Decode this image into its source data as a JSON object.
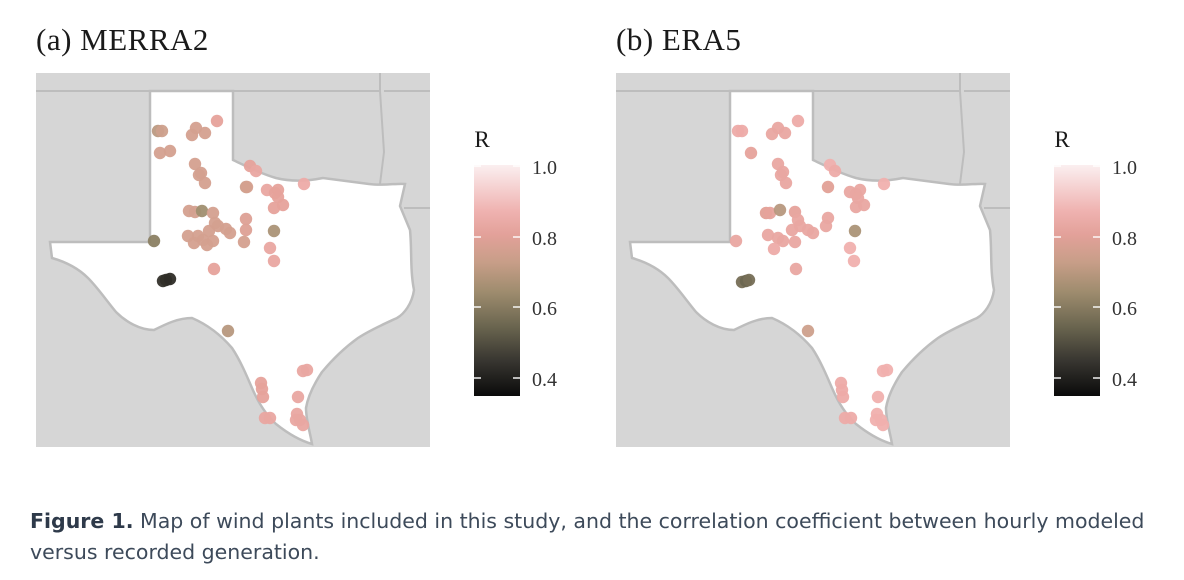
{
  "panels": [
    {
      "id": "a",
      "title": "(a)  MERRA2",
      "legend": {
        "title": "R",
        "ticks": [
          "1.0",
          "0.8",
          "0.6",
          "0.4"
        ]
      },
      "plants": [
        [
          158,
          131,
          0.75
        ],
        [
          162,
          131,
          0.78
        ],
        [
          160,
          153,
          0.8
        ],
        [
          170,
          151,
          0.8
        ],
        [
          196,
          128,
          0.8
        ],
        [
          217,
          121,
          0.86
        ],
        [
          192,
          135,
          0.8
        ],
        [
          205,
          133,
          0.8
        ],
        [
          195,
          164,
          0.8
        ],
        [
          199,
          175,
          0.8
        ],
        [
          205,
          183,
          0.8
        ],
        [
          201,
          173,
          0.8
        ],
        [
          250,
          166,
          0.86
        ],
        [
          256,
          171,
          0.88
        ],
        [
          246,
          187,
          0.78
        ],
        [
          267,
          190,
          0.88
        ],
        [
          275,
          193,
          0.86
        ],
        [
          278,
          190,
          0.86
        ],
        [
          283,
          205,
          0.86
        ],
        [
          278,
          197,
          0.86
        ],
        [
          274,
          208,
          0.86
        ],
        [
          304,
          184,
          0.9
        ],
        [
          247,
          187,
          0.8
        ],
        [
          195,
          212,
          0.8
        ],
        [
          189,
          211,
          0.8
        ],
        [
          202,
          211,
          0.7
        ],
        [
          213,
          213,
          0.8
        ],
        [
          215,
          223,
          0.8
        ],
        [
          218,
          226,
          0.8
        ],
        [
          209,
          231,
          0.8
        ],
        [
          226,
          229,
          0.8
        ],
        [
          230,
          233,
          0.8
        ],
        [
          188,
          236,
          0.8
        ],
        [
          198,
          236,
          0.8
        ],
        [
          203,
          240,
          0.8
        ],
        [
          213,
          241,
          0.8
        ],
        [
          246,
          219,
          0.83
        ],
        [
          246,
          230,
          0.83
        ],
        [
          244,
          242,
          0.8
        ],
        [
          207,
          245,
          0.8
        ],
        [
          194,
          243,
          0.8
        ],
        [
          274,
          231,
          0.72
        ],
        [
          270,
          248,
          0.88
        ],
        [
          274,
          261,
          0.88
        ],
        [
          154,
          241,
          0.66
        ],
        [
          214,
          269,
          0.86
        ],
        [
          163,
          281,
          0.47
        ],
        [
          166,
          280,
          0.46
        ],
        [
          170,
          279,
          0.45
        ],
        [
          228,
          331,
          0.74
        ],
        [
          261,
          383,
          0.86
        ],
        [
          262,
          389,
          0.86
        ],
        [
          263,
          397,
          0.86
        ],
        [
          303,
          371,
          0.88
        ],
        [
          307,
          370,
          0.88
        ],
        [
          298,
          397,
          0.88
        ],
        [
          297,
          414,
          0.88
        ],
        [
          300,
          420,
          0.88
        ],
        [
          296,
          420,
          0.88
        ],
        [
          303,
          425,
          0.88
        ],
        [
          265,
          418,
          0.88
        ],
        [
          270,
          418,
          0.88
        ]
      ]
    },
    {
      "id": "b",
      "title": "(b)  ERA5",
      "legend": {
        "title": "R",
        "ticks": [
          "1.0",
          "0.8",
          "0.6",
          "0.4"
        ]
      },
      "plants": [
        [
          738,
          131,
          0.9
        ],
        [
          742,
          131,
          0.9
        ],
        [
          751,
          153,
          0.86
        ],
        [
          778,
          128,
          0.88
        ],
        [
          798,
          121,
          0.9
        ],
        [
          772,
          134,
          0.88
        ],
        [
          785,
          133,
          0.88
        ],
        [
          778,
          164,
          0.88
        ],
        [
          781,
          175,
          0.88
        ],
        [
          786,
          183,
          0.88
        ],
        [
          783,
          172,
          0.88
        ],
        [
          830,
          165,
          0.92
        ],
        [
          835,
          171,
          0.9
        ],
        [
          828,
          187,
          0.84
        ],
        [
          850,
          192,
          0.88
        ],
        [
          856,
          194,
          0.88
        ],
        [
          860,
          190,
          0.88
        ],
        [
          864,
          205,
          0.88
        ],
        [
          858,
          198,
          0.88
        ],
        [
          856,
          207,
          0.88
        ],
        [
          884,
          184,
          0.92
        ],
        [
          766,
          213,
          0.84
        ],
        [
          770,
          213,
          0.86
        ],
        [
          780,
          210,
          0.74
        ],
        [
          795,
          212,
          0.86
        ],
        [
          798,
          220,
          0.88
        ],
        [
          800,
          226,
          0.88
        ],
        [
          792,
          230,
          0.88
        ],
        [
          808,
          230,
          0.88
        ],
        [
          813,
          233,
          0.88
        ],
        [
          768,
          235,
          0.88
        ],
        [
          778,
          238,
          0.88
        ],
        [
          783,
          241,
          0.88
        ],
        [
          795,
          242,
          0.88
        ],
        [
          828,
          218,
          0.88
        ],
        [
          826,
          226,
          0.88
        ],
        [
          774,
          249,
          0.9
        ],
        [
          855,
          231,
          0.72
        ],
        [
          850,
          248,
          0.92
        ],
        [
          854,
          261,
          0.92
        ],
        [
          736,
          241,
          0.88
        ],
        [
          796,
          269,
          0.88
        ],
        [
          742,
          282,
          0.62
        ],
        [
          746,
          281,
          0.6
        ],
        [
          749,
          280,
          0.62
        ],
        [
          808,
          331,
          0.78
        ],
        [
          841,
          383,
          0.9
        ],
        [
          842,
          390,
          0.9
        ],
        [
          843,
          397,
          0.9
        ],
        [
          883,
          371,
          0.92
        ],
        [
          887,
          370,
          0.92
        ],
        [
          878,
          397,
          0.92
        ],
        [
          877,
          414,
          0.92
        ],
        [
          881,
          420,
          0.92
        ],
        [
          876,
          420,
          0.92
        ],
        [
          883,
          425,
          0.92
        ],
        [
          845,
          418,
          0.9
        ],
        [
          851,
          418,
          0.9
        ]
      ]
    }
  ],
  "caption": {
    "label": "Figure 1.",
    "text": " Map of wind plants included in this study, and the correlation coefficient between hourly modeled versus recorded generation."
  }
}
